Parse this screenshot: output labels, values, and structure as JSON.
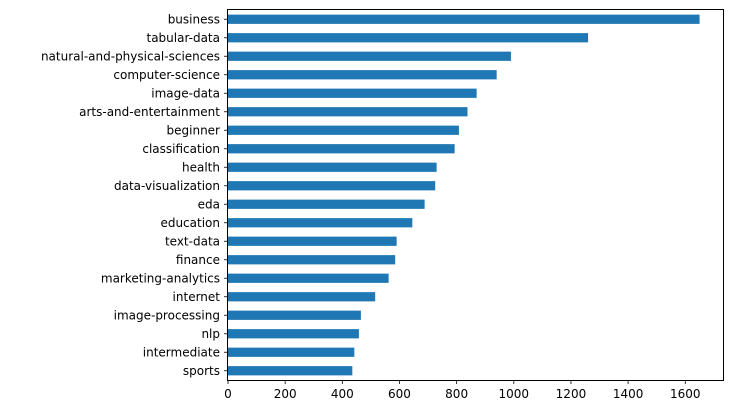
{
  "chart_data": {
    "type": "bar",
    "orientation": "horizontal",
    "categories": [
      "business",
      "tabular-data",
      "natural-and-physical-sciences",
      "computer-science",
      "image-data",
      "arts-and-entertainment",
      "beginner",
      "classification",
      "health",
      "data-visualization",
      "eda",
      "education",
      "text-data",
      "finance",
      "marketing-analytics",
      "internet",
      "image-processing",
      "nlp",
      "intermediate",
      "sports"
    ],
    "values": [
      1650,
      1260,
      990,
      940,
      870,
      838,
      808,
      793,
      730,
      725,
      688,
      645,
      590,
      585,
      562,
      515,
      465,
      458,
      442,
      435
    ],
    "xlim": [
      0,
      1732
    ],
    "xticks": [
      0,
      200,
      400,
      600,
      800,
      1000,
      1200,
      1400,
      1600
    ],
    "xtick_labels": [
      "0",
      "200",
      "400",
      "600",
      "800",
      "1000",
      "1200",
      "1400",
      "1600"
    ],
    "title": "",
    "xlabel": "",
    "ylabel": "",
    "grid": false,
    "legend": "none",
    "bar_color": "#1f77b4"
  }
}
